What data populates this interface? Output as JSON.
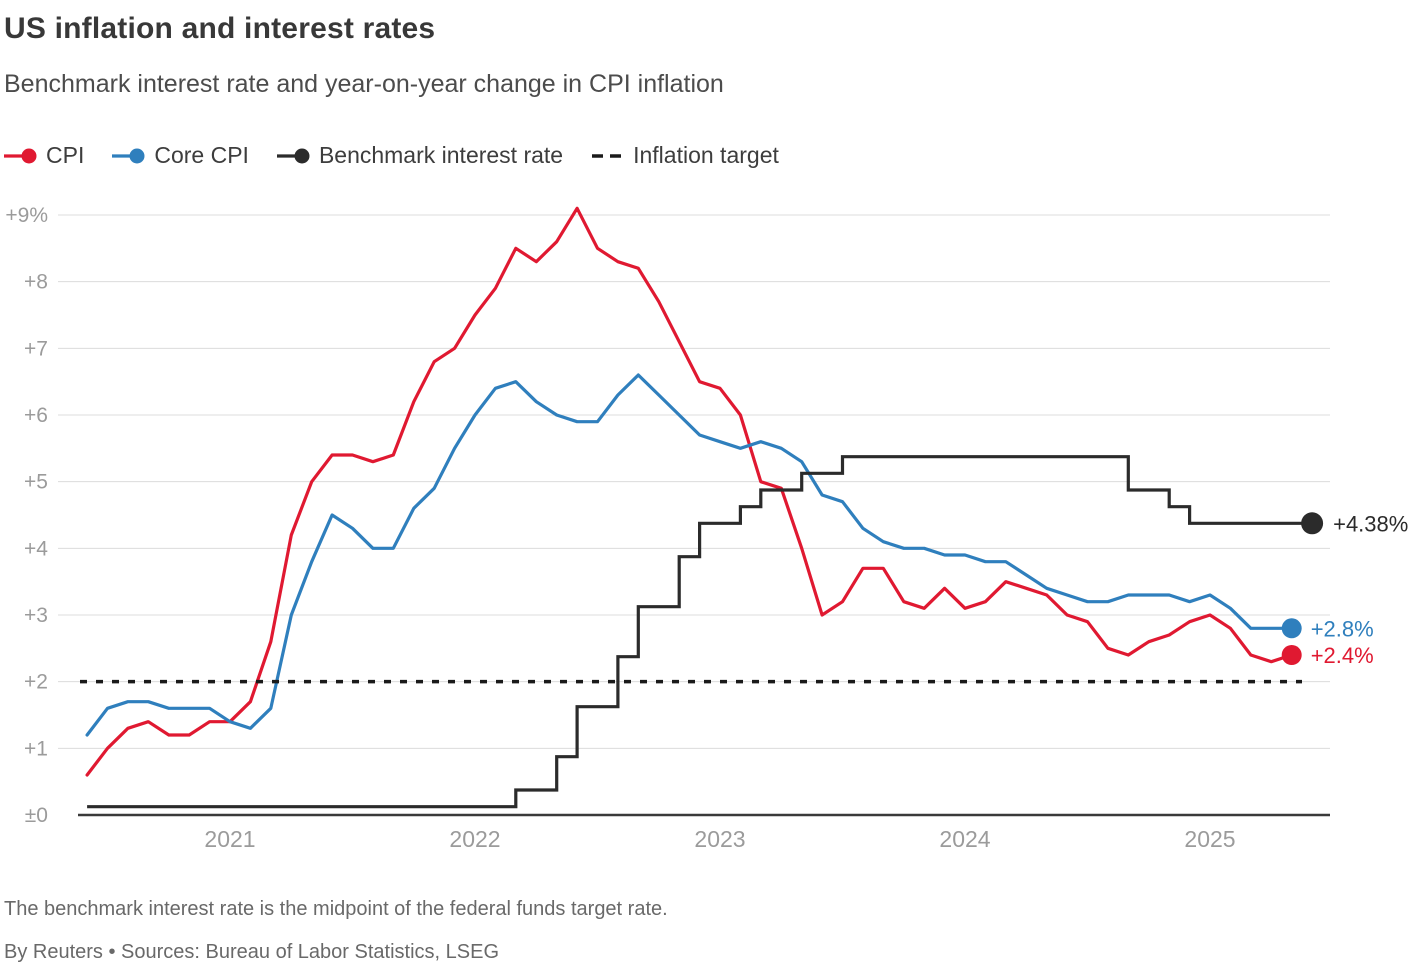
{
  "header": {
    "title": "US inflation and interest rates",
    "subtitle": "Benchmark interest rate and year-on-year change in CPI inflation"
  },
  "legend": [
    {
      "label": "CPI",
      "color": "#e01931",
      "marker": "line-dot"
    },
    {
      "label": "Core CPI",
      "color": "#2f7fbd",
      "marker": "line-dot"
    },
    {
      "label": "Benchmark interest rate",
      "color": "#2b2b2b",
      "marker": "line-dot"
    },
    {
      "label": "Inflation target",
      "color": "#1a1a1a",
      "marker": "dashes"
    }
  ],
  "chart_data": {
    "type": "line",
    "title": "US inflation and interest rates",
    "subtitle": "Benchmark interest rate and year-on-year change in CPI inflation",
    "y_axis": {
      "ticks": [
        "+9%",
        "+8",
        "+7",
        "+6",
        "+5",
        "+4",
        "+3",
        "+2",
        "+1",
        "±0"
      ],
      "min": 0,
      "max": 9,
      "grid": true
    },
    "x_axis": {
      "ticks": [
        "2021",
        "2022",
        "2023",
        "2024",
        "2025"
      ]
    },
    "target_value": 2,
    "series": [
      {
        "key": "cpi",
        "name": "CPI",
        "type": "line",
        "color": "#e01931",
        "start": "2020-06",
        "frequency": "monthly",
        "values": [
          0.6,
          1.0,
          1.3,
          1.4,
          1.2,
          1.2,
          1.4,
          1.4,
          1.7,
          2.6,
          4.2,
          5.0,
          5.4,
          5.4,
          5.3,
          5.4,
          6.2,
          6.8,
          7.0,
          7.5,
          7.9,
          8.5,
          8.3,
          8.6,
          9.1,
          8.5,
          8.3,
          8.2,
          7.7,
          7.1,
          6.5,
          6.4,
          6.0,
          5.0,
          4.9,
          4.0,
          3.0,
          3.2,
          3.7,
          3.7,
          3.2,
          3.1,
          3.4,
          3.1,
          3.2,
          3.5,
          3.4,
          3.3,
          3.0,
          2.9,
          2.5,
          2.4,
          2.6,
          2.7,
          2.9,
          3.0,
          2.8,
          2.4,
          2.3,
          2.4
        ],
        "end_label": "+2.4%"
      },
      {
        "key": "core-cpi",
        "name": "Core CPI",
        "type": "line",
        "color": "#2f7fbd",
        "start": "2020-06",
        "frequency": "monthly",
        "values": [
          1.2,
          1.6,
          1.7,
          1.7,
          1.6,
          1.6,
          1.6,
          1.4,
          1.3,
          1.6,
          3.0,
          3.8,
          4.5,
          4.3,
          4.0,
          4.0,
          4.6,
          4.9,
          5.5,
          6.0,
          6.4,
          6.5,
          6.2,
          6.0,
          5.9,
          5.9,
          6.3,
          6.6,
          6.3,
          6.0,
          5.7,
          5.6,
          5.5,
          5.6,
          5.5,
          5.3,
          4.8,
          4.7,
          4.3,
          4.1,
          4.0,
          4.0,
          3.9,
          3.9,
          3.8,
          3.8,
          3.6,
          3.4,
          3.3,
          3.2,
          3.2,
          3.3,
          3.3,
          3.3,
          3.2,
          3.3,
          3.1,
          2.8,
          2.8,
          2.8
        ],
        "end_label": "+2.8%"
      },
      {
        "key": "benchmark",
        "name": "Benchmark interest rate",
        "type": "step",
        "color": "#2b2b2b",
        "points": [
          [
            "2020-06",
            0.125
          ],
          [
            "2022-03",
            0.375
          ],
          [
            "2022-05",
            0.875
          ],
          [
            "2022-06",
            1.625
          ],
          [
            "2022-08",
            2.375
          ],
          [
            "2022-09",
            3.125
          ],
          [
            "2022-11",
            3.875
          ],
          [
            "2022-12",
            4.375
          ],
          [
            "2023-02",
            4.625
          ],
          [
            "2023-03",
            4.875
          ],
          [
            "2023-05",
            5.125
          ],
          [
            "2023-07",
            5.375
          ],
          [
            "2024-09",
            4.875
          ],
          [
            "2024-11",
            4.625
          ],
          [
            "2024-12",
            4.375
          ]
        ],
        "end": "2025-06",
        "end_label": "+4.38%"
      },
      {
        "key": "inflation-target",
        "name": "Inflation target",
        "type": "dashed",
        "color": "#1a1a1a",
        "value": 2.0
      }
    ],
    "legend_position": "top"
  },
  "footnotes": {
    "note": "The benchmark interest rate is the midpoint of the federal funds target rate.",
    "source": "By Reuters • Sources: Bureau of Labor Statistics, LSEG"
  }
}
